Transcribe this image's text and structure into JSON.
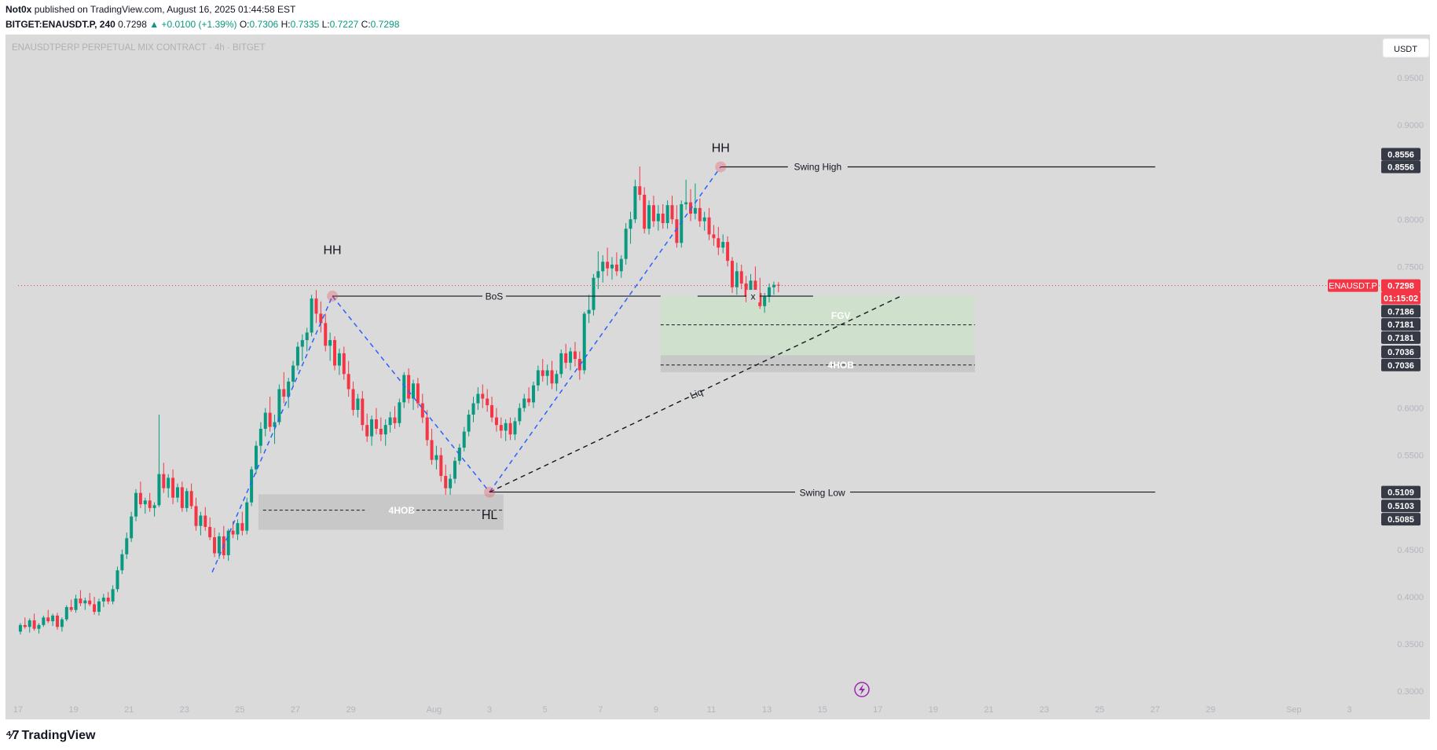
{
  "header": {
    "author": "Not0x",
    "published": "published on TradingView.com, August 16, 2025 01:44:58 EST",
    "symbol": "BITGET:ENAUSDT.P, 240",
    "last": "0.7298",
    "change": "▲ +0.0100 (+1.39%)",
    "o_label": "O:",
    "o_val": "0.7306",
    "h_label": "H:",
    "h_val": "0.7335",
    "l_label": "L:",
    "l_val": "0.7227",
    "c_label": "C:",
    "c_val": "0.7298"
  },
  "watermark": "ENAUSDTPERP PERPETUAL MIX CONTRACT · 4h · BITGET",
  "currency_button": "USDT",
  "footer": {
    "brand": "TradingView"
  },
  "colors": {
    "up": "#089981",
    "down": "#f23645",
    "background": "#dadada",
    "dash_blue": "#2962ff",
    "fvg": "#cfe0cc",
    "ob": "#c8c8c8",
    "price_tag": "#f23645",
    "dark_tag": "#363a45"
  },
  "chart_data": {
    "type": "candlestick",
    "y_axis": {
      "min": 0.27,
      "max": 0.99,
      "ticks": [
        "0.9500",
        "0.9000",
        "0.8000",
        "0.7500",
        "0.6000",
        "0.5500",
        "0.4500",
        "0.4000",
        "0.3500",
        "0.3000"
      ]
    },
    "x_axis": {
      "start": "2025-07-17",
      "ticks": [
        "17",
        "19",
        "21",
        "23",
        "25",
        "27",
        "29",
        "Aug",
        "3",
        "5",
        "7",
        "9",
        "11",
        "13",
        "15",
        "17",
        "19",
        "21",
        "23",
        "25",
        "27",
        "29",
        "Sep",
        "3"
      ]
    },
    "candles_start": "2025-07-17T00:00",
    "candle_hours": 4,
    "candles": [
      [
        0.363,
        0.372,
        0.36,
        0.37
      ],
      [
        0.37,
        0.378,
        0.366,
        0.368
      ],
      [
        0.368,
        0.377,
        0.362,
        0.375
      ],
      [
        0.375,
        0.382,
        0.364,
        0.366
      ],
      [
        0.366,
        0.372,
        0.361,
        0.37
      ],
      [
        0.37,
        0.38,
        0.368,
        0.378
      ],
      [
        0.378,
        0.386,
        0.372,
        0.374
      ],
      [
        0.374,
        0.382,
        0.369,
        0.38
      ],
      [
        0.38,
        0.383,
        0.365,
        0.368
      ],
      [
        0.368,
        0.378,
        0.363,
        0.376
      ],
      [
        0.376,
        0.391,
        0.374,
        0.389
      ],
      [
        0.389,
        0.397,
        0.384,
        0.386
      ],
      [
        0.386,
        0.402,
        0.383,
        0.398
      ],
      [
        0.398,
        0.407,
        0.39,
        0.393
      ],
      [
        0.393,
        0.399,
        0.386,
        0.396
      ],
      [
        0.396,
        0.404,
        0.39,
        0.392
      ],
      [
        0.392,
        0.4,
        0.381,
        0.384
      ],
      [
        0.384,
        0.398,
        0.38,
        0.395
      ],
      [
        0.395,
        0.403,
        0.389,
        0.399
      ],
      [
        0.399,
        0.405,
        0.392,
        0.395
      ],
      [
        0.395,
        0.412,
        0.392,
        0.408
      ],
      [
        0.408,
        0.432,
        0.405,
        0.428
      ],
      [
        0.428,
        0.45,
        0.424,
        0.445
      ],
      [
        0.445,
        0.468,
        0.44,
        0.462
      ],
      [
        0.462,
        0.49,
        0.458,
        0.485
      ],
      [
        0.485,
        0.514,
        0.48,
        0.51
      ],
      [
        0.51,
        0.522,
        0.494,
        0.498
      ],
      [
        0.498,
        0.505,
        0.488,
        0.502
      ],
      [
        0.502,
        0.51,
        0.49,
        0.494
      ],
      [
        0.494,
        0.5,
        0.485,
        0.497
      ],
      [
        0.497,
        0.593,
        0.495,
        0.53
      ],
      [
        0.53,
        0.542,
        0.51,
        0.515
      ],
      [
        0.515,
        0.53,
        0.505,
        0.526
      ],
      [
        0.526,
        0.535,
        0.498,
        0.505
      ],
      [
        0.505,
        0.52,
        0.5,
        0.516
      ],
      [
        0.516,
        0.522,
        0.49,
        0.494
      ],
      [
        0.494,
        0.515,
        0.49,
        0.512
      ],
      [
        0.512,
        0.52,
        0.493,
        0.496
      ],
      [
        0.496,
        0.505,
        0.47,
        0.475
      ],
      [
        0.475,
        0.49,
        0.465,
        0.486
      ],
      [
        0.486,
        0.495,
        0.47,
        0.474
      ],
      [
        0.474,
        0.484,
        0.46,
        0.463
      ],
      [
        0.463,
        0.473,
        0.442,
        0.446
      ],
      [
        0.446,
        0.468,
        0.44,
        0.464
      ],
      [
        0.464,
        0.475,
        0.44,
        0.444
      ],
      [
        0.444,
        0.472,
        0.438,
        0.47
      ],
      [
        0.47,
        0.48,
        0.462,
        0.466
      ],
      [
        0.466,
        0.482,
        0.46,
        0.478
      ],
      [
        0.478,
        0.49,
        0.465,
        0.47
      ],
      [
        0.47,
        0.505,
        0.466,
        0.5
      ],
      [
        0.5,
        0.538,
        0.496,
        0.535
      ],
      [
        0.535,
        0.565,
        0.53,
        0.56
      ],
      [
        0.56,
        0.585,
        0.552,
        0.578
      ],
      [
        0.578,
        0.6,
        0.57,
        0.595
      ],
      [
        0.595,
        0.612,
        0.575,
        0.58
      ],
      [
        0.58,
        0.593,
        0.562,
        0.585
      ],
      [
        0.585,
        0.625,
        0.582,
        0.62
      ],
      [
        0.62,
        0.638,
        0.605,
        0.612
      ],
      [
        0.612,
        0.632,
        0.6,
        0.628
      ],
      [
        0.628,
        0.65,
        0.622,
        0.645
      ],
      [
        0.645,
        0.67,
        0.64,
        0.665
      ],
      [
        0.665,
        0.678,
        0.65,
        0.672
      ],
      [
        0.672,
        0.685,
        0.66,
        0.68
      ],
      [
        0.68,
        0.72,
        0.676,
        0.716
      ],
      [
        0.716,
        0.725,
        0.69,
        0.7
      ],
      [
        0.7,
        0.713,
        0.68,
        0.69
      ],
      [
        0.69,
        0.7,
        0.66,
        0.666
      ],
      [
        0.666,
        0.68,
        0.65,
        0.672
      ],
      [
        0.672,
        0.676,
        0.64,
        0.645
      ],
      [
        0.645,
        0.663,
        0.635,
        0.658
      ],
      [
        0.658,
        0.665,
        0.63,
        0.636
      ],
      [
        0.636,
        0.65,
        0.612,
        0.62
      ],
      [
        0.62,
        0.628,
        0.592,
        0.598
      ],
      [
        0.598,
        0.615,
        0.59,
        0.61
      ],
      [
        0.61,
        0.618,
        0.576,
        0.582
      ],
      [
        0.582,
        0.594,
        0.564,
        0.57
      ],
      [
        0.57,
        0.592,
        0.56,
        0.588
      ],
      [
        0.588,
        0.6,
        0.572,
        0.578
      ],
      [
        0.578,
        0.59,
        0.565,
        0.572
      ],
      [
        0.572,
        0.588,
        0.56,
        0.582
      ],
      [
        0.582,
        0.596,
        0.574,
        0.59
      ],
      [
        0.59,
        0.602,
        0.578,
        0.584
      ],
      [
        0.584,
        0.61,
        0.58,
        0.606
      ],
      [
        0.606,
        0.638,
        0.6,
        0.635
      ],
      [
        0.635,
        0.642,
        0.605,
        0.61
      ],
      [
        0.61,
        0.63,
        0.598,
        0.626
      ],
      [
        0.626,
        0.632,
        0.6,
        0.605
      ],
      [
        0.605,
        0.615,
        0.584,
        0.59
      ],
      [
        0.59,
        0.598,
        0.56,
        0.566
      ],
      [
        0.566,
        0.578,
        0.54,
        0.545
      ],
      [
        0.545,
        0.56,
        0.535,
        0.55
      ],
      [
        0.55,
        0.558,
        0.522,
        0.528
      ],
      [
        0.528,
        0.54,
        0.508,
        0.515
      ],
      [
        0.515,
        0.53,
        0.508,
        0.525
      ],
      [
        0.525,
        0.548,
        0.52,
        0.544
      ],
      [
        0.544,
        0.562,
        0.54,
        0.558
      ],
      [
        0.558,
        0.58,
        0.554,
        0.575
      ],
      [
        0.575,
        0.598,
        0.57,
        0.593
      ],
      [
        0.593,
        0.612,
        0.585,
        0.605
      ],
      [
        0.605,
        0.622,
        0.598,
        0.615
      ],
      [
        0.615,
        0.625,
        0.6,
        0.61
      ],
      [
        0.61,
        0.62,
        0.596,
        0.603
      ],
      [
        0.603,
        0.612,
        0.585,
        0.59
      ],
      [
        0.59,
        0.6,
        0.575,
        0.582
      ],
      [
        0.582,
        0.59,
        0.568,
        0.576
      ],
      [
        0.576,
        0.588,
        0.565,
        0.584
      ],
      [
        0.584,
        0.59,
        0.566,
        0.572
      ],
      [
        0.572,
        0.59,
        0.566,
        0.586
      ],
      [
        0.586,
        0.605,
        0.582,
        0.6
      ],
      [
        0.6,
        0.615,
        0.596,
        0.61
      ],
      [
        0.61,
        0.622,
        0.602,
        0.606
      ],
      [
        0.606,
        0.628,
        0.6,
        0.624
      ],
      [
        0.624,
        0.645,
        0.618,
        0.64
      ],
      [
        0.64,
        0.652,
        0.628,
        0.634
      ],
      [
        0.634,
        0.646,
        0.624,
        0.64
      ],
      [
        0.64,
        0.65,
        0.62,
        0.626
      ],
      [
        0.626,
        0.64,
        0.618,
        0.636
      ],
      [
        0.636,
        0.662,
        0.632,
        0.658
      ],
      [
        0.658,
        0.668,
        0.642,
        0.648
      ],
      [
        0.648,
        0.664,
        0.64,
        0.66
      ],
      [
        0.66,
        0.67,
        0.644,
        0.652
      ],
      [
        0.652,
        0.66,
        0.63,
        0.64
      ],
      [
        0.64,
        0.702,
        0.636,
        0.7
      ],
      [
        0.7,
        0.72,
        0.69,
        0.704
      ],
      [
        0.704,
        0.742,
        0.698,
        0.738
      ],
      [
        0.738,
        0.766,
        0.726,
        0.745
      ],
      [
        0.745,
        0.762,
        0.733,
        0.755
      ],
      [
        0.755,
        0.77,
        0.74,
        0.748
      ],
      [
        0.748,
        0.76,
        0.736,
        0.752
      ],
      [
        0.752,
        0.765,
        0.74,
        0.745
      ],
      [
        0.745,
        0.762,
        0.738,
        0.758
      ],
      [
        0.758,
        0.796,
        0.752,
        0.79
      ],
      [
        0.79,
        0.808,
        0.774,
        0.8
      ],
      [
        0.8,
        0.842,
        0.796,
        0.835
      ],
      [
        0.835,
        0.856,
        0.82,
        0.826
      ],
      [
        0.826,
        0.834,
        0.785,
        0.79
      ],
      [
        0.79,
        0.82,
        0.784,
        0.815
      ],
      [
        0.815,
        0.825,
        0.792,
        0.798
      ],
      [
        0.798,
        0.815,
        0.788,
        0.806
      ],
      [
        0.806,
        0.816,
        0.79,
        0.796
      ],
      [
        0.796,
        0.82,
        0.79,
        0.815
      ],
      [
        0.815,
        0.825,
        0.795,
        0.8
      ],
      [
        0.8,
        0.815,
        0.77,
        0.775
      ],
      [
        0.775,
        0.82,
        0.77,
        0.816
      ],
      [
        0.816,
        0.842,
        0.81,
        0.818
      ],
      [
        0.818,
        0.832,
        0.798,
        0.806
      ],
      [
        0.806,
        0.838,
        0.8,
        0.812
      ],
      [
        0.812,
        0.822,
        0.792,
        0.798
      ],
      [
        0.798,
        0.808,
        0.788,
        0.802
      ],
      [
        0.802,
        0.812,
        0.778,
        0.784
      ],
      [
        0.784,
        0.794,
        0.772,
        0.78
      ],
      [
        0.78,
        0.792,
        0.762,
        0.77
      ],
      [
        0.77,
        0.784,
        0.764,
        0.776
      ],
      [
        0.776,
        0.782,
        0.75,
        0.756
      ],
      [
        0.756,
        0.76,
        0.722,
        0.728
      ],
      [
        0.728,
        0.754,
        0.72,
        0.745
      ],
      [
        0.745,
        0.752,
        0.726,
        0.732
      ],
      [
        0.732,
        0.74,
        0.712,
        0.718
      ],
      [
        0.718,
        0.742,
        0.714,
        0.735
      ],
      [
        0.735,
        0.75,
        0.716,
        0.722
      ],
      [
        0.722,
        0.738,
        0.705,
        0.708
      ],
      [
        0.708,
        0.722,
        0.701,
        0.718
      ],
      [
        0.718,
        0.732,
        0.712,
        0.728
      ],
      [
        0.728,
        0.734,
        0.72,
        0.7306
      ],
      [
        0.7306,
        0.7335,
        0.7227,
        0.7298
      ]
    ],
    "annotations": {
      "labels": [
        {
          "text": "HH",
          "date": "2025-07-28T08:00",
          "price": 0.768
        },
        {
          "text": "HH",
          "date": "2025-08-11T08:00",
          "price": 0.876
        },
        {
          "text": "HL",
          "date": "2025-08-03T00:00",
          "price": 0.487
        },
        {
          "text": "BoS",
          "date": "2025-08-03T04:00",
          "price": 0.7186
        },
        {
          "text": "Swing High",
          "date": "2025-08-14T20:00",
          "price": 0.8556
        },
        {
          "text": "Swing Low",
          "date": "2025-08-15T00:00",
          "price": 0.5103
        },
        {
          "text": "x",
          "date": "2025-08-12T12:00",
          "price": 0.7186
        },
        {
          "text": "FGV",
          "date": "2025-08-15T16:00",
          "price": 0.6982
        },
        {
          "text": "4HOB",
          "date": "2025-08-15T16:00",
          "price": 0.6456
        },
        {
          "text": "4HOB",
          "date": "2025-07-30T20:00",
          "price": 0.4917
        },
        {
          "text": "Liq",
          "date": "2025-08-10T12:00",
          "price": 0.6155
        }
      ]
    },
    "price_tags": [
      {
        "text": "0.8556",
        "price": 0.869,
        "style": "dark"
      },
      {
        "text": "0.8556",
        "price": 0.8556,
        "style": "dark"
      },
      {
        "text": "ENAUSDT.P",
        "price": 0.7298,
        "style": "red"
      },
      {
        "text": "0.7298",
        "price": 0.7298,
        "style": "red"
      },
      {
        "text": "01:15:02",
        "price": 0.7166,
        "style": "red"
      },
      {
        "text": "0.7186",
        "price": 0.7026,
        "style": "dark"
      },
      {
        "text": "0.7181",
        "price": 0.6886,
        "style": "dark"
      },
      {
        "text": "0.7181",
        "price": 0.6746,
        "style": "dark"
      },
      {
        "text": "0.7036",
        "price": 0.6596,
        "style": "dark"
      },
      {
        "text": "0.7036",
        "price": 0.6456,
        "style": "dark"
      },
      {
        "text": "0.5109",
        "price": 0.5109,
        "style": "dark"
      },
      {
        "text": "0.5103",
        "price": 0.4962,
        "style": "dark"
      },
      {
        "text": "0.5085",
        "price": 0.4822,
        "style": "dark"
      }
    ]
  }
}
